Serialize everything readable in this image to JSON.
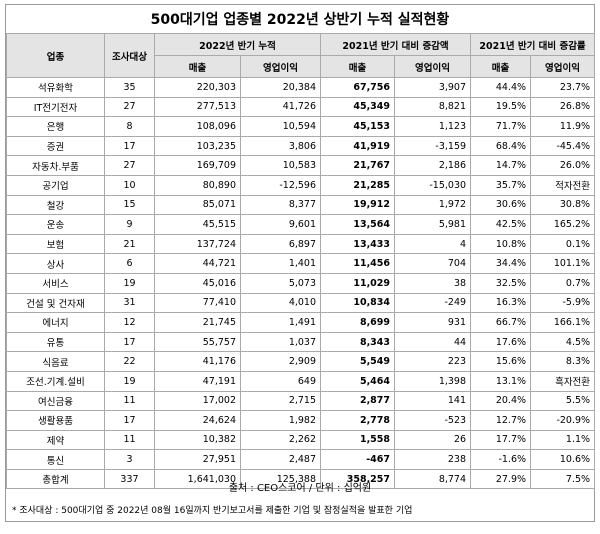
{
  "title": "500대기업 업종별 2022년 상반기 누적 실적현황",
  "header": {
    "industry": "업종",
    "target": "조사대상",
    "group1": "2022년 반기 누적",
    "group2": "2021년 반기 대비 증감액",
    "group3": "2021년 반기 대비 증감률",
    "sales": "매출",
    "profit": "영업이익"
  },
  "table": {
    "rows": [
      [
        "석유화학",
        "35",
        "220,303",
        "20,384",
        "67,756",
        "3,907",
        "44.4%",
        "23.7%"
      ],
      [
        "IT전기전자",
        "27",
        "277,513",
        "41,726",
        "45,349",
        "8,821",
        "19.5%",
        "26.8%"
      ],
      [
        "은행",
        "8",
        "108,096",
        "10,594",
        "45,153",
        "1,123",
        "71.7%",
        "11.9%"
      ],
      [
        "증권",
        "17",
        "103,235",
        "3,806",
        "41,919",
        "-3,159",
        "68.4%",
        "-45.4%"
      ],
      [
        "자동차.부품",
        "27",
        "169,709",
        "10,583",
        "21,767",
        "2,186",
        "14.7%",
        "26.0%"
      ],
      [
        "공기업",
        "10",
        "80,890",
        "-12,596",
        "21,285",
        "-15,030",
        "35.7%",
        "적자전환"
      ],
      [
        "철강",
        "15",
        "85,071",
        "8,377",
        "19,912",
        "1,972",
        "30.6%",
        "30.8%"
      ],
      [
        "운송",
        "9",
        "45,515",
        "9,601",
        "13,564",
        "5,981",
        "42.5%",
        "165.2%"
      ],
      [
        "보험",
        "21",
        "137,724",
        "6,897",
        "13,433",
        "4",
        "10.8%",
        "0.1%"
      ],
      [
        "상사",
        "6",
        "44,721",
        "1,401",
        "11,456",
        "704",
        "34.4%",
        "101.1%"
      ],
      [
        "서비스",
        "19",
        "45,016",
        "5,073",
        "11,029",
        "38",
        "32.5%",
        "0.7%"
      ],
      [
        "건설 및 건자재",
        "31",
        "77,410",
        "4,010",
        "10,834",
        "-249",
        "16.3%",
        "-5.9%"
      ],
      [
        "에너지",
        "12",
        "21,745",
        "1,491",
        "8,699",
        "931",
        "66.7%",
        "166.1%"
      ],
      [
        "유통",
        "17",
        "55,757",
        "1,037",
        "8,343",
        "44",
        "17.6%",
        "4.5%"
      ],
      [
        "식음료",
        "22",
        "41,176",
        "2,909",
        "5,549",
        "223",
        "15.6%",
        "8.3%"
      ],
      [
        "조선.기계.설비",
        "19",
        "47,191",
        "649",
        "5,464",
        "1,398",
        "13.1%",
        "흑자전환"
      ],
      [
        "여신금융",
        "11",
        "17,002",
        "2,715",
        "2,877",
        "141",
        "20.4%",
        "5.5%"
      ],
      [
        "생활용품",
        "17",
        "24,624",
        "1,982",
        "2,778",
        "-523",
        "12.7%",
        "-20.9%"
      ],
      [
        "제약",
        "11",
        "10,382",
        "2,262",
        "1,558",
        "26",
        "17.7%",
        "1.1%"
      ],
      [
        "통신",
        "3",
        "27,951",
        "2,487",
        "-467",
        "238",
        "-1.6%",
        "10.6%"
      ],
      [
        "총합계",
        "337",
        "1,641,030",
        "125,388",
        "358,257",
        "8,774",
        "27.9%",
        "7.5%"
      ]
    ]
  },
  "footer": {
    "source": "출처 : CEO스코어 / 단위 : 십억원",
    "note": "* 조사대상 : 500대기업 중 2022년 08월 16일까지 반기보고서를 제출한 기업 및 잠정실적을 발표한 기업"
  }
}
